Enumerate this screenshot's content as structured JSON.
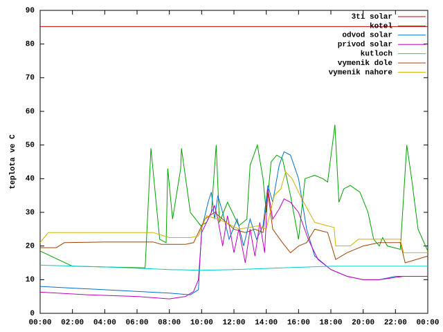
{
  "chart_data": {
    "type": "line",
    "y_label": "teplota ve C",
    "xlim": [
      0,
      24
    ],
    "ylim": [
      0,
      90
    ],
    "yticks": [
      0,
      10,
      20,
      30,
      40,
      50,
      60,
      70,
      80,
      90
    ],
    "xticks": [
      {
        "value": 0,
        "label": "00:00"
      },
      {
        "value": 2,
        "label": "02:00"
      },
      {
        "value": 4,
        "label": "04:00"
      },
      {
        "value": 6,
        "label": "06:00"
      },
      {
        "value": 8,
        "label": "08:00"
      },
      {
        "value": 10,
        "label": "10:00"
      },
      {
        "value": 12,
        "label": "12:00"
      },
      {
        "value": 14,
        "label": "14:00"
      },
      {
        "value": 16,
        "label": "16:00"
      },
      {
        "value": 18,
        "label": "18:00"
      },
      {
        "value": 20,
        "label": "20:00"
      },
      {
        "value": 22,
        "label": "22:00"
      },
      {
        "value": 24,
        "label": "00:00"
      }
    ],
    "grid": false,
    "legend": "top-right",
    "series": [
      {
        "name": "3ti solar",
        "color": "#c00000",
        "x": [
          0,
          24
        ],
        "values": [
          85.2,
          85.2
        ]
      },
      {
        "name": "kotel",
        "color": "#00a000",
        "x": [
          0,
          2,
          6.5,
          6.86,
          7.4,
          7.8,
          7.9,
          8.2,
          8.7,
          8.75,
          9.3,
          9.95,
          10.3,
          10.6,
          10.9,
          11.1,
          11.6,
          12.3,
          12.8,
          13.0,
          13.45,
          13.8,
          14.0,
          14.3,
          14.65,
          15.0,
          15.5,
          16.0,
          16.4,
          17.0,
          17.5,
          17.8,
          18.25,
          18.5,
          18.8,
          19.2,
          19.8,
          20.3,
          20.65,
          21.0,
          21.2,
          21.5,
          22.3,
          22.7,
          23.0,
          23.4,
          24
        ],
        "values": [
          18.5,
          14,
          13.5,
          49,
          22,
          21,
          43,
          28,
          43,
          49,
          30,
          26,
          27,
          30,
          50,
          27,
          33,
          26,
          28,
          44,
          50,
          40,
          30,
          45,
          47,
          46,
          35,
          22,
          40,
          41,
          40,
          39,
          56,
          33,
          37,
          38,
          36,
          30,
          22,
          20,
          22.5,
          20,
          19,
          50,
          40,
          25,
          18.5
        ]
      },
      {
        "name": "odvod solar",
        "color": "#0070d0",
        "x": [
          0,
          4,
          8,
          9.3,
          9.8,
          10.0,
          10.4,
          10.6,
          10.8,
          11.0,
          11.3,
          11.7,
          12.2,
          12.6,
          13.0,
          13.4,
          13.8,
          14.1,
          14.4,
          14.8,
          15.1,
          15.5,
          16.0,
          16.5,
          17.0,
          18.0,
          19.0,
          20.0,
          21.0,
          22.0,
          24
        ],
        "values": [
          8,
          7,
          6,
          5.5,
          7,
          25,
          33,
          36,
          28,
          35,
          30,
          22,
          28,
          20,
          28,
          22,
          26,
          38,
          33,
          44,
          48,
          47,
          40,
          25,
          17,
          13,
          11,
          10,
          10,
          11,
          11
        ]
      },
      {
        "name": "privod solar",
        "color": "#c000c0",
        "x": [
          0,
          3,
          6,
          8,
          9,
          9.5,
          9.8,
          10.0,
          10.5,
          10.8,
          11.0,
          11.3,
          11.6,
          12.0,
          12.3,
          12.7,
          13.0,
          13.3,
          13.6,
          13.9,
          14.1,
          14.4,
          14.8,
          15.1,
          15.5,
          16.0,
          16.6,
          17.2,
          18.0,
          19.0,
          20.0,
          21.0,
          22.5,
          24
        ],
        "values": [
          6.3,
          5.5,
          5,
          4.3,
          5,
          6.5,
          10,
          24,
          29,
          32,
          28,
          20,
          29,
          18,
          25,
          15,
          25,
          17,
          27,
          18,
          37,
          28,
          31,
          34,
          33,
          30,
          22,
          16,
          13,
          11,
          10,
          10,
          11,
          11
        ]
      },
      {
        "name": "kutloch",
        "color": "#00cccc",
        "x": [
          0,
          4,
          8,
          10,
          12,
          15,
          18,
          24
        ],
        "values": [
          14.3,
          13.8,
          13,
          12.8,
          13,
          13.5,
          14,
          14
        ]
      },
      {
        "name": "vymenik dole",
        "color": "#a04000",
        "x": [
          0,
          1,
          1.5,
          4,
          7,
          7.5,
          9,
          9.5,
          10.2,
          10.8,
          11.3,
          12,
          12.7,
          13.3,
          13.8,
          14.1,
          14.4,
          15,
          15.5,
          16.0,
          16.5,
          17.0,
          17.8,
          18.3,
          19,
          20,
          21,
          22.3,
          22.6,
          23.3,
          24
        ],
        "values": [
          19.5,
          19.5,
          21,
          21.2,
          21.2,
          20.5,
          20.5,
          21,
          28,
          30,
          28,
          25,
          24,
          25,
          24,
          36,
          25,
          21,
          18,
          20,
          21,
          25,
          24,
          16,
          18,
          20,
          21,
          21,
          15,
          16,
          17
        ]
      },
      {
        "name": "vymenik nahore",
        "color": "#d0b000",
        "x": [
          0,
          0.5,
          3,
          7,
          8,
          9.3,
          9.8,
          10.3,
          11,
          11.5,
          12.3,
          13.5,
          14,
          14.5,
          14.9,
          15.2,
          15.6,
          16.2,
          17,
          18.2,
          18.3,
          19.2,
          19.7,
          22.3,
          22.5,
          24
        ],
        "values": [
          21,
          24,
          24,
          24,
          22.5,
          22.5,
          23,
          29,
          28,
          27,
          25,
          26,
          25,
          35,
          37,
          42,
          40,
          34,
          27,
          25.5,
          20,
          20,
          22,
          22,
          18,
          18
        ]
      }
    ]
  }
}
